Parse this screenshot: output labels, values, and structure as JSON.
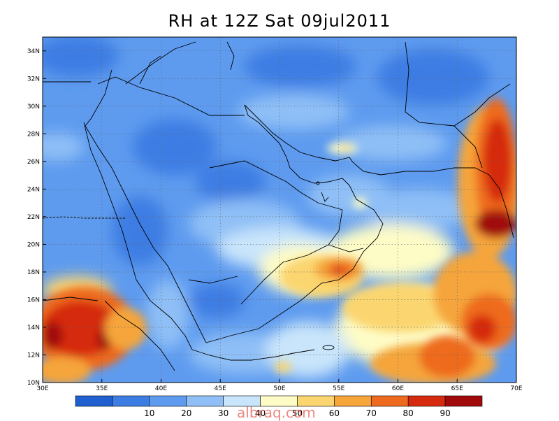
{
  "title": "RH at 12Z Sat 09jul2011",
  "watermark": "albraq.com",
  "map": {
    "lon_range": [
      30,
      70
    ],
    "lat_range": [
      10,
      35
    ],
    "x_ticks": [
      {
        "lon": 30,
        "label": "30E"
      },
      {
        "lon": 35,
        "label": "35E"
      },
      {
        "lon": 40,
        "label": "40E"
      },
      {
        "lon": 45,
        "label": "45E"
      },
      {
        "lon": 50,
        "label": "50E"
      },
      {
        "lon": 55,
        "label": "55E"
      },
      {
        "lon": 60,
        "label": "60E"
      },
      {
        "lon": 65,
        "label": "65E"
      },
      {
        "lon": 70,
        "label": "70E"
      }
    ],
    "y_ticks": [
      {
        "lat": 10,
        "label": "10N"
      },
      {
        "lat": 12,
        "label": "12N"
      },
      {
        "lat": 14,
        "label": "14N"
      },
      {
        "lat": 16,
        "label": "16N"
      },
      {
        "lat": 18,
        "label": "18N"
      },
      {
        "lat": 20,
        "label": "20N"
      },
      {
        "lat": 22,
        "label": "22N"
      },
      {
        "lat": 24,
        "label": "24N"
      },
      {
        "lat": 26,
        "label": "26N"
      },
      {
        "lat": 28,
        "label": "28N"
      },
      {
        "lat": 30,
        "label": "30N"
      },
      {
        "lat": 32,
        "label": "32N"
      },
      {
        "lat": 34,
        "label": "34N"
      }
    ],
    "gridlines": true
  },
  "colorbar": {
    "colors": [
      "#1f5fd0",
      "#3c7de3",
      "#5e9bef",
      "#8fbff6",
      "#c9e5fb",
      "#fefcc6",
      "#fbd670",
      "#f5a53a",
      "#ee6a1f",
      "#d52a0e",
      "#a10a0a"
    ],
    "labels": [
      "10",
      "20",
      "30",
      "40",
      "50",
      "60",
      "70",
      "80",
      "90"
    ]
  },
  "rh_regions": [
    {
      "lon": 38,
      "lat": 28,
      "rh": 15
    },
    {
      "lon": 45,
      "lat": 26,
      "rh": 18
    },
    {
      "lon": 56,
      "lat": 30,
      "rh": 22
    },
    {
      "lon": 50,
      "lat": 20,
      "rh": 55
    },
    {
      "lon": 55,
      "lat": 18,
      "rh": 82
    },
    {
      "lon": 33,
      "lat": 13,
      "rh": 88
    },
    {
      "lon": 69,
      "lat": 22,
      "rh": 92
    },
    {
      "lon": 62,
      "lat": 14,
      "rh": 70
    }
  ]
}
